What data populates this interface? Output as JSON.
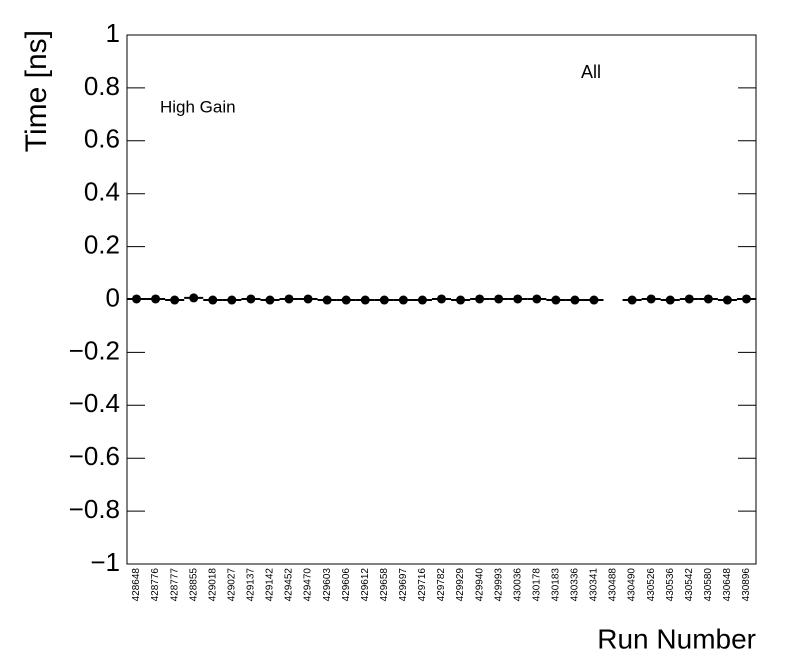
{
  "chart_data": {
    "type": "scatter",
    "x_label": "Run Number",
    "y_label": "Time [ns]",
    "annotations": [
      "High Gain",
      "All"
    ],
    "categories": [
      "428648",
      "428776",
      "428777",
      "428855",
      "429018",
      "429027",
      "429137",
      "429142",
      "429452",
      "429470",
      "429603",
      "429606",
      "429612",
      "429658",
      "429697",
      "429716",
      "429782",
      "429929",
      "429940",
      "429993",
      "430036",
      "430178",
      "430183",
      "430336",
      "430341",
      "430488",
      "430490",
      "430526",
      "430536",
      "430542",
      "430580",
      "430648",
      "430896"
    ],
    "series": [
      {
        "name": "High Gain",
        "color": "#000000",
        "values": [
          0.002,
          0.002,
          -0.002,
          0.006,
          -0.002,
          -0.002,
          0.002,
          -0.002,
          0.002,
          0.002,
          -0.002,
          -0.002,
          -0.002,
          -0.002,
          -0.002,
          -0.002,
          0.002,
          -0.002,
          0.002,
          0.002,
          0.002,
          0.002,
          -0.002,
          -0.002,
          -0.002,
          null,
          -0.002,
          0.002,
          -0.002,
          0.002,
          0.002,
          -0.002,
          0.002
        ]
      }
    ],
    "ylim": [
      -1,
      1
    ],
    "yticks": [
      {
        "value": -1,
        "label": "−1"
      },
      {
        "value": -0.8,
        "label": "−0.8"
      },
      {
        "value": -0.6,
        "label": "−0.6"
      },
      {
        "value": -0.4,
        "label": "−0.4"
      },
      {
        "value": -0.2,
        "label": "−0.2"
      },
      0,
      0.2,
      0.4,
      0.6,
      0.8,
      1
    ]
  }
}
